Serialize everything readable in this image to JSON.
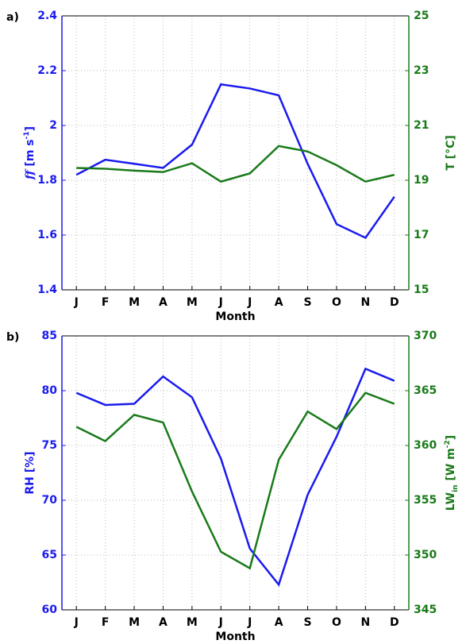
{
  "chart_data": [
    {
      "type": "line",
      "panel_label": "a)",
      "xlabel": "Month",
      "categories": [
        "J",
        "F",
        "M",
        "A",
        "M",
        "J",
        "J",
        "A",
        "S",
        "O",
        "N",
        "D"
      ],
      "ylabel": [
        {
          "text": "ff",
          "shift": "italic"
        },
        {
          "text": " [m s"
        },
        {
          "text": "-1",
          "shift": "sup"
        },
        {
          "text": "]"
        }
      ],
      "y2label": [
        {
          "text": "T [°C]"
        }
      ],
      "ylim": [
        1.4,
        2.4
      ],
      "yticks": [
        1.4,
        1.6,
        1.8,
        2,
        2.2,
        2.4
      ],
      "y2lim": [
        15,
        25
      ],
      "y2ticks": [
        15,
        17,
        19,
        21,
        23,
        25
      ],
      "left_color": "#1a1aee",
      "right_color": "#1a7a1a",
      "grid": true,
      "series": [
        {
          "color": "#1a1aee",
          "values": [
            1.82,
            1.875,
            1.86,
            1.845,
            1.93,
            2.15,
            2.135,
            2.11,
            1.86,
            1.64,
            1.59,
            1.74
          ]
        },
        {
          "color": "#1a7a1a",
          "axis": "y2",
          "values": [
            19.45,
            19.42,
            19.35,
            19.3,
            19.62,
            18.95,
            19.25,
            20.25,
            20.05,
            19.55,
            18.95,
            19.2
          ]
        }
      ]
    },
    {
      "type": "line",
      "panel_label": "b)",
      "xlabel": "Month",
      "categories": [
        "J",
        "F",
        "M",
        "A",
        "M",
        "J",
        "J",
        "A",
        "S",
        "O",
        "N",
        "D"
      ],
      "ylabel": [
        {
          "text": "RH [%]"
        }
      ],
      "y2label": [
        {
          "text": "LW"
        },
        {
          "text": "in",
          "shift": "sub"
        },
        {
          "text": " [W m"
        },
        {
          "text": "-2",
          "shift": "sup"
        },
        {
          "text": "]"
        }
      ],
      "ylim": [
        60,
        85
      ],
      "yticks": [
        60,
        65,
        70,
        75,
        80,
        85
      ],
      "y2lim": [
        345,
        370
      ],
      "y2ticks": [
        345,
        350,
        355,
        360,
        365,
        370
      ],
      "left_color": "#1a1aee",
      "right_color": "#1a7a1a",
      "grid": true,
      "series": [
        {
          "color": "#1a1aee",
          "values": [
            79.8,
            78.7,
            78.8,
            81.3,
            79.4,
            73.8,
            65.6,
            62.3,
            70.5,
            75.8,
            82.0,
            80.9
          ]
        },
        {
          "color": "#1a7a1a",
          "axis": "y2",
          "values": [
            361.7,
            360.4,
            362.8,
            362.1,
            355.8,
            350.3,
            348.8,
            358.7,
            363.1,
            361.5,
            364.8,
            363.8
          ]
        }
      ]
    }
  ]
}
